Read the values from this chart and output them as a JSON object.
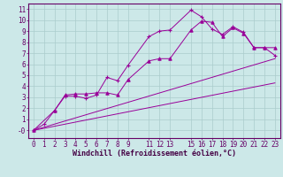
{
  "background_color": "#cce8e8",
  "grid_color": "#aacccc",
  "line_color": "#990099",
  "xlabel": "Windchill (Refroidissement éolien,°C)",
  "xlabel_fontsize": 6.0,
  "tick_fontsize": 5.5,
  "xlim": [
    -0.5,
    23.5
  ],
  "ylim": [
    -0.7,
    11.5
  ],
  "xtick_positions": [
    0,
    1,
    2,
    3,
    4,
    5,
    6,
    7,
    8,
    9,
    11,
    12,
    13,
    15,
    16,
    17,
    18,
    19,
    20,
    21,
    22,
    23
  ],
  "xtick_labels": [
    "0",
    "1",
    "2",
    "3",
    "4",
    "5",
    "6",
    "7",
    "8",
    "9",
    "11",
    "12",
    "13",
    "15",
    "16",
    "17",
    "18",
    "19",
    "20",
    "21",
    "22",
    "23"
  ],
  "ytick_positions": [
    0,
    1,
    2,
    3,
    4,
    5,
    6,
    7,
    8,
    9,
    10,
    11
  ],
  "ytick_labels": [
    "-0",
    "1",
    "2",
    "3",
    "4",
    "5",
    "6",
    "7",
    "8",
    "9",
    "10",
    "11"
  ],
  "series1_x": [
    0,
    1,
    2,
    3,
    4,
    5,
    6,
    7,
    8,
    9,
    11,
    12,
    13,
    15,
    16,
    17,
    18,
    19,
    20,
    21,
    22,
    23
  ],
  "series1_y": [
    0.0,
    0.55,
    1.8,
    3.1,
    3.1,
    2.9,
    3.2,
    4.8,
    4.5,
    5.9,
    8.5,
    9.0,
    9.1,
    10.9,
    10.3,
    9.2,
    8.7,
    9.4,
    8.9,
    7.5,
    7.5,
    6.8
  ],
  "series2_x": [
    0,
    2,
    3,
    4,
    5,
    6,
    7,
    8,
    9,
    11,
    12,
    13,
    15,
    16,
    17,
    18,
    19,
    20,
    21,
    22,
    23
  ],
  "series2_y": [
    0.0,
    1.8,
    3.2,
    3.3,
    3.3,
    3.4,
    3.4,
    3.2,
    4.6,
    6.3,
    6.5,
    6.5,
    9.1,
    9.9,
    9.8,
    8.5,
    9.3,
    8.8,
    7.5,
    7.5,
    7.5
  ],
  "series3_x": [
    0,
    23
  ],
  "series3_y": [
    0.0,
    6.5
  ],
  "series4_x": [
    0,
    23
  ],
  "series4_y": [
    0.0,
    4.3
  ]
}
